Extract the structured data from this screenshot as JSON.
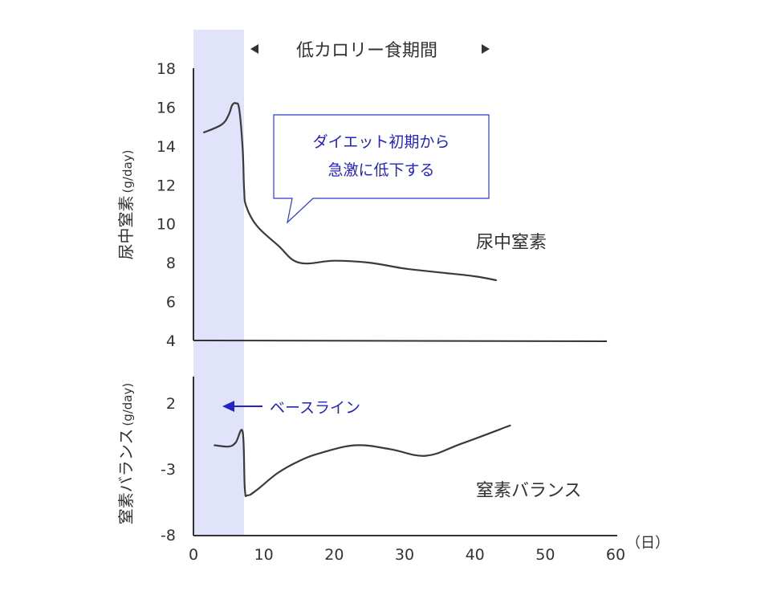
{
  "chart_data": [
    {
      "type": "line",
      "ylabel_main": "尿中窒素",
      "ylabel_unit": "(g/day)",
      "ylim": [
        4,
        18
      ],
      "yticks": [
        "4",
        "6",
        "8",
        "10",
        "12",
        "14",
        "16",
        "18"
      ],
      "series_label": "尿中窒素",
      "series": [
        {
          "x": [
            1.5,
            4,
            5,
            5.5,
            6,
            6.5,
            7,
            7.2,
            7.5,
            9,
            12,
            15,
            20,
            25,
            30,
            35,
            40,
            43
          ],
          "y": [
            14.7,
            15.1,
            15.6,
            16.1,
            16.2,
            15.9,
            13.8,
            11.8,
            10.9,
            9.9,
            8.9,
            8.0,
            8.1,
            8.0,
            7.7,
            7.5,
            7.3,
            7.1
          ]
        }
      ],
      "callout": {
        "line1": "ダイエット初期から",
        "line2": "急激に低下する"
      }
    },
    {
      "type": "line",
      "ylabel_main": "窒素バランス",
      "ylabel_unit": "(g/day)",
      "ylim": [
        -8,
        4
      ],
      "yticks": [
        "2",
        "-3",
        "-8"
      ],
      "series_label": "窒素バランス",
      "series": [
        {
          "x": [
            3,
            5,
            6,
            7,
            7.3,
            7.7,
            9,
            12,
            15,
            18,
            23,
            28,
            33,
            38,
            45
          ],
          "y": [
            -1.2,
            -1.3,
            -1.0,
            -0.2,
            -4.5,
            -5.0,
            -4.6,
            -3.3,
            -2.4,
            -1.8,
            -1.2,
            -1.5,
            -2.0,
            -1.1,
            0.3
          ]
        }
      ],
      "baseline_label": "ベースライン"
    }
  ],
  "x_axis": {
    "xlim": [
      0,
      60
    ],
    "ticks": [
      "0",
      "10",
      "20",
      "30",
      "40",
      "50",
      "60"
    ],
    "unit": "（日）"
  },
  "low_calorie_period_label": "低カロリー食期間",
  "baseline_period": [
    0,
    7
  ],
  "colors": {
    "line": "#3a3a3a",
    "text": "#333333",
    "accent_text": "#2323c8",
    "baseline_band": "#e0e3fa",
    "callout_border": "#2c3bd0"
  }
}
